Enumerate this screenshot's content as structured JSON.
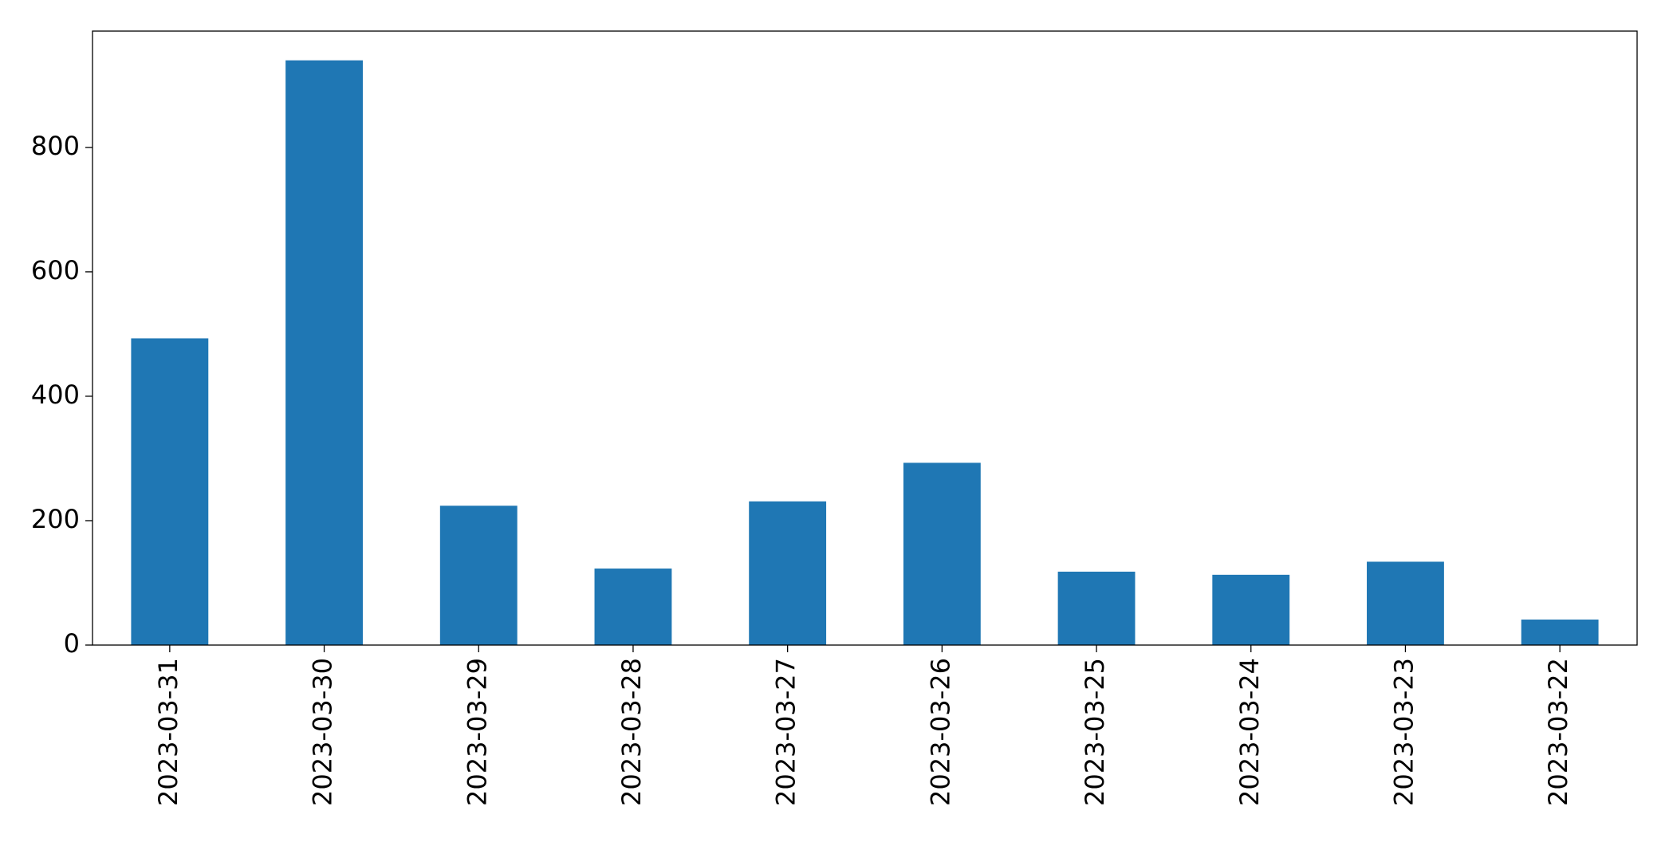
{
  "chart_data": {
    "type": "bar",
    "categories": [
      "2023-03-31",
      "2023-03-30",
      "2023-03-29",
      "2023-03-28",
      "2023-03-27",
      "2023-03-26",
      "2023-03-25",
      "2023-03-24",
      "2023-03-23",
      "2023-03-22"
    ],
    "values": [
      493,
      940,
      224,
      123,
      231,
      293,
      118,
      113,
      134,
      41
    ],
    "color": "#1f77b4",
    "ylim": [
      0,
      987
    ],
    "yticks": [
      0,
      200,
      400,
      600,
      800
    ],
    "grid": false
  }
}
